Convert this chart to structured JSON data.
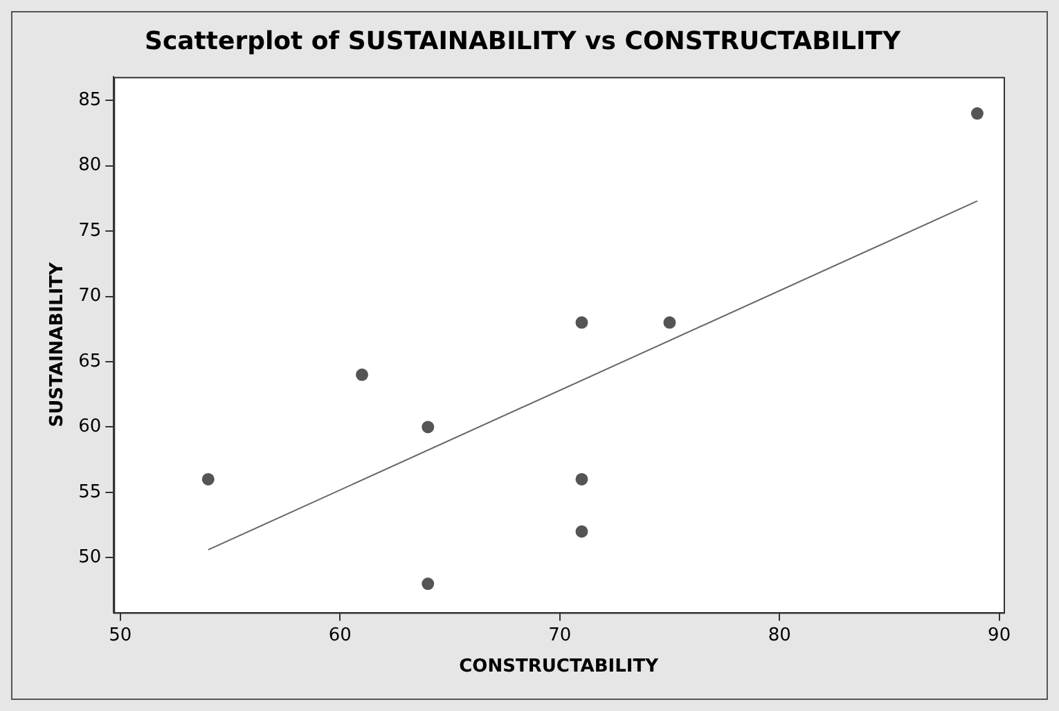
{
  "chart_data": {
    "type": "scatter",
    "title": "Scatterplot of SUSTAINABILITY vs CONSTRUCTABILITY",
    "xlabel": "CONSTRUCTABILITY",
    "ylabel": "SUSTAINABILITY",
    "xlim": [
      49.7,
      90.2
    ],
    "xticks": [
      50,
      60,
      70,
      80,
      90
    ],
    "ylim": [
      45.8,
      86.8
    ],
    "yticks": [
      50,
      55,
      60,
      65,
      70,
      75,
      80,
      85
    ],
    "grid": false,
    "legend": false,
    "marker": "circle",
    "series": [
      {
        "color": "#555555",
        "x": [
          54,
          61,
          64,
          64,
          71,
          71,
          71,
          75,
          89
        ],
        "values": [
          56,
          64,
          60,
          48,
          68,
          56,
          52,
          68,
          84
        ]
      },
      {
        "type": "line",
        "color": "#666666",
        "x": [
          54,
          89
        ],
        "values": [
          50.6,
          77.3
        ],
        "marker": "none",
        "line_style": "solid"
      }
    ]
  }
}
